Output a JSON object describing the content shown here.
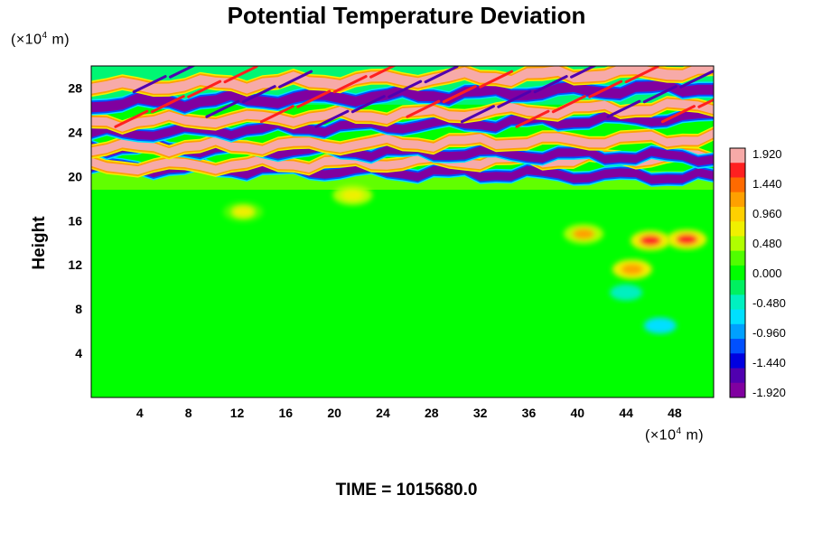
{
  "title": "Potential Temperature Deviation",
  "ylabel": "Height",
  "y_unit": {
    "prefix": "(×10",
    "exp": "4",
    "suffix": " m)"
  },
  "x_unit": {
    "prefix": "(×10",
    "exp": "4",
    "suffix": " m)"
  },
  "time": {
    "label": "TIME = ",
    "value": "1015680.0"
  },
  "chart_data": {
    "type": "heatmap",
    "title": "Potential Temperature Deviation",
    "xlabel": "",
    "ylabel": "Height",
    "xlim": [
      0,
      51.2
    ],
    "ylim": [
      0,
      30
    ],
    "x_ticks": [
      4,
      8,
      12,
      16,
      20,
      24,
      28,
      32,
      36,
      40,
      44,
      48
    ],
    "y_ticks": [
      4,
      8,
      12,
      16,
      20,
      24,
      28
    ],
    "colorbar": {
      "range": [
        -1.92,
        1.92
      ],
      "ticks": [
        "1.920",
        "1.440",
        "0.960",
        "0.480",
        "0.000",
        "-0.480",
        "-0.960",
        "-1.440",
        "-1.920"
      ],
      "colors": [
        "#f7aaa8",
        "#ff2020",
        "#ff6a00",
        "#ffa000",
        "#ffd000",
        "#f0f000",
        "#b0ff00",
        "#50ff00",
        "#00ff00",
        "#00f060",
        "#00f0c0",
        "#00e0ff",
        "#00a0ff",
        "#0050ff",
        "#0000e0",
        "#5000b0",
        "#8000a0"
      ]
    },
    "field_description": {
      "background": "near-zero deviation (green) from surface to ~19",
      "stratospheric_layers": [
        {
          "y": 20.4,
          "sign": "negative"
        },
        {
          "y": 21.3,
          "sign": "positive"
        },
        {
          "y": 22.2,
          "sign": "negative"
        },
        {
          "y": 23.0,
          "sign": "positive"
        },
        {
          "y": 24.6,
          "sign": "negative"
        },
        {
          "y": 25.6,
          "sign": "positive"
        },
        {
          "y": 27.3,
          "sign": "negative"
        },
        {
          "y": 28.8,
          "sign": "positive"
        }
      ],
      "warm_features": [
        {
          "x": 12.5,
          "y": 16.8,
          "value": 0.7
        },
        {
          "x": 21.5,
          "y": 18.3,
          "value": 0.8
        },
        {
          "x": 40.5,
          "y": 14.8,
          "value": 1.1
        },
        {
          "x": 46,
          "y": 14.2,
          "value": 1.6
        },
        {
          "x": 49,
          "y": 14.3,
          "value": 1.6
        },
        {
          "x": 44.5,
          "y": 11.6,
          "value": 1.2
        }
      ],
      "cool_features": [
        {
          "x": 46.8,
          "y": 6.5,
          "value": -0.7
        },
        {
          "x": 44,
          "y": 9.5,
          "value": -0.5
        }
      ]
    }
  }
}
